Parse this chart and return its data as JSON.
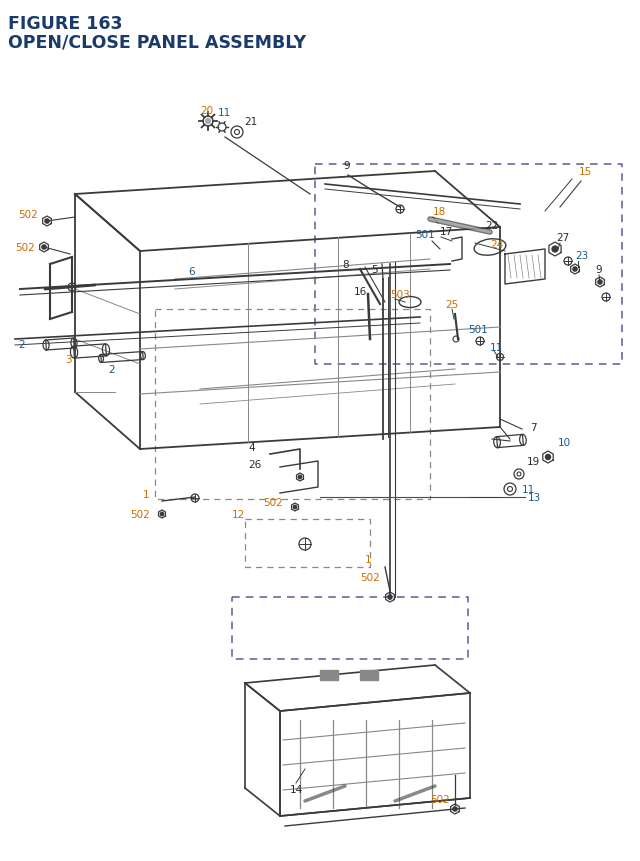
{
  "title_line1": "FIGURE 163",
  "title_line2": "OPEN/CLOSE PANEL ASSEMBLY",
  "title_color": "#1a3a6b",
  "title_fontsize": 12.5,
  "bg_color": "#ffffff",
  "oc": "#c87000",
  "bc": "#1a5a8a",
  "dk": "#2a2a2a",
  "lc": "#3a3a3a",
  "lgray": "#888888",
  "dash_c": "#5a5a9a",
  "gray": "#555555"
}
